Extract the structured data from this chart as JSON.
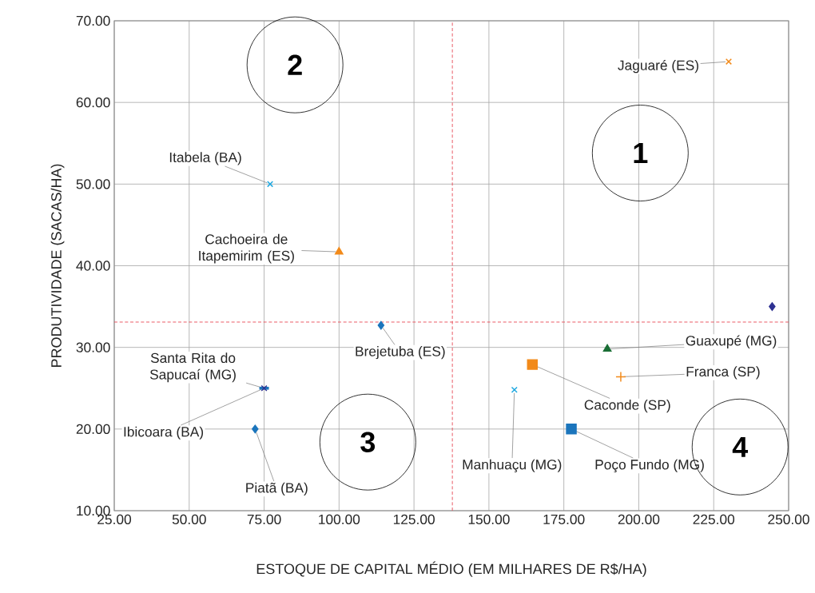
{
  "chart_data": {
    "type": "scatter",
    "xlabel": "ESTOQUE DE CAPITAL MÉDIO (EM MILHARES DE R$/HA)",
    "ylabel": "PRODUTIVIDADE (SACAS/HA)",
    "xlim": [
      25,
      250
    ],
    "ylim": [
      10,
      70
    ],
    "xticks": [
      {
        "value": 25,
        "label": "25.00"
      },
      {
        "value": 50,
        "label": "50.00"
      },
      {
        "value": 75,
        "label": "75.00"
      },
      {
        "value": 100,
        "label": "100.00"
      },
      {
        "value": 125,
        "label": "125.00"
      },
      {
        "value": 150,
        "label": "150.00"
      },
      {
        "value": 175,
        "label": "175.00"
      },
      {
        "value": 200,
        "label": "200.00"
      },
      {
        "value": 225,
        "label": "225.00"
      },
      {
        "value": 250,
        "label": "250.00"
      }
    ],
    "yticks": [
      {
        "value": 10,
        "label": "10.00"
      },
      {
        "value": 20,
        "label": "20.00"
      },
      {
        "value": 30,
        "label": "30.00"
      },
      {
        "value": 40,
        "label": "40.00"
      },
      {
        "value": 50,
        "label": "50.00"
      },
      {
        "value": 60,
        "label": "60.00"
      },
      {
        "value": 70,
        "label": "70.00"
      }
    ],
    "grid": true,
    "series": [
      {
        "name": "Jaguaré (ES)",
        "color": "#f28a1a",
        "marker": "cross",
        "x": [
          230
        ],
        "values": [
          65
        ]
      },
      {
        "name": "Itabela (BA)",
        "color": "#1fa8e0",
        "marker": "cross",
        "x": [
          77
        ],
        "values": [
          50
        ]
      },
      {
        "name": "Cachoeira de Itapemirim (ES)",
        "color": "#f28a1a",
        "marker": "triangle",
        "x": [
          100
        ],
        "values": [
          41.7
        ]
      },
      {
        "color": "#2e3192",
        "marker": "diamond",
        "x": [
          244.5
        ],
        "values": [
          35
        ]
      },
      {
        "name": "Brejetuba (ES)",
        "color": "#1b75bc",
        "marker": "diamond",
        "x": [
          114
        ],
        "values": [
          32.7
        ]
      },
      {
        "name": "Guaxupé (MG)",
        "color": "#1a6e35",
        "marker": "triangle",
        "x": [
          189.5
        ],
        "values": [
          29.8
        ]
      },
      {
        "name": "Franca (SP)",
        "color": "#f28a1a",
        "marker": "plus",
        "x": [
          194
        ],
        "values": [
          26.4
        ]
      },
      {
        "name": "Caconde (SP)",
        "color": "#f28a1a",
        "marker": "square",
        "x": [
          164.5
        ],
        "values": [
          27.9
        ]
      },
      {
        "name": "Manhuaçu (MG)",
        "color": "#1fa8e0",
        "marker": "cross",
        "x": [
          158.5
        ],
        "values": [
          24.8
        ]
      },
      {
        "name": "Poço Fundo (MG)",
        "color": "#1b75bc",
        "marker": "square",
        "x": [
          177.5
        ],
        "values": [
          20
        ]
      },
      {
        "name": "Ibicoara (BA)",
        "color": "#1b75bc",
        "x": [
          75
        ],
        "values": [
          25
        ]
      },
      {
        "name": "Santa Rita do Sapucaí (MG)",
        "color": "#2e3192",
        "marker": "cross",
        "x": [
          75
        ],
        "values": [
          25
        ]
      },
      {
        "name": "Piatã (BA)",
        "color": "#1b75bc",
        "marker": "diamond",
        "x": [
          72
        ],
        "values": [
          20
        ]
      }
    ],
    "ref_lines": [
      {
        "axis": "x",
        "value": 137.8,
        "color": "#e8505b",
        "line_style": "dashed"
      },
      {
        "axis": "y",
        "value": 33.1,
        "color": "#e8505b",
        "line_style": "dashed"
      }
    ],
    "annotations": [
      "1",
      "2",
      "3",
      "4"
    ]
  }
}
